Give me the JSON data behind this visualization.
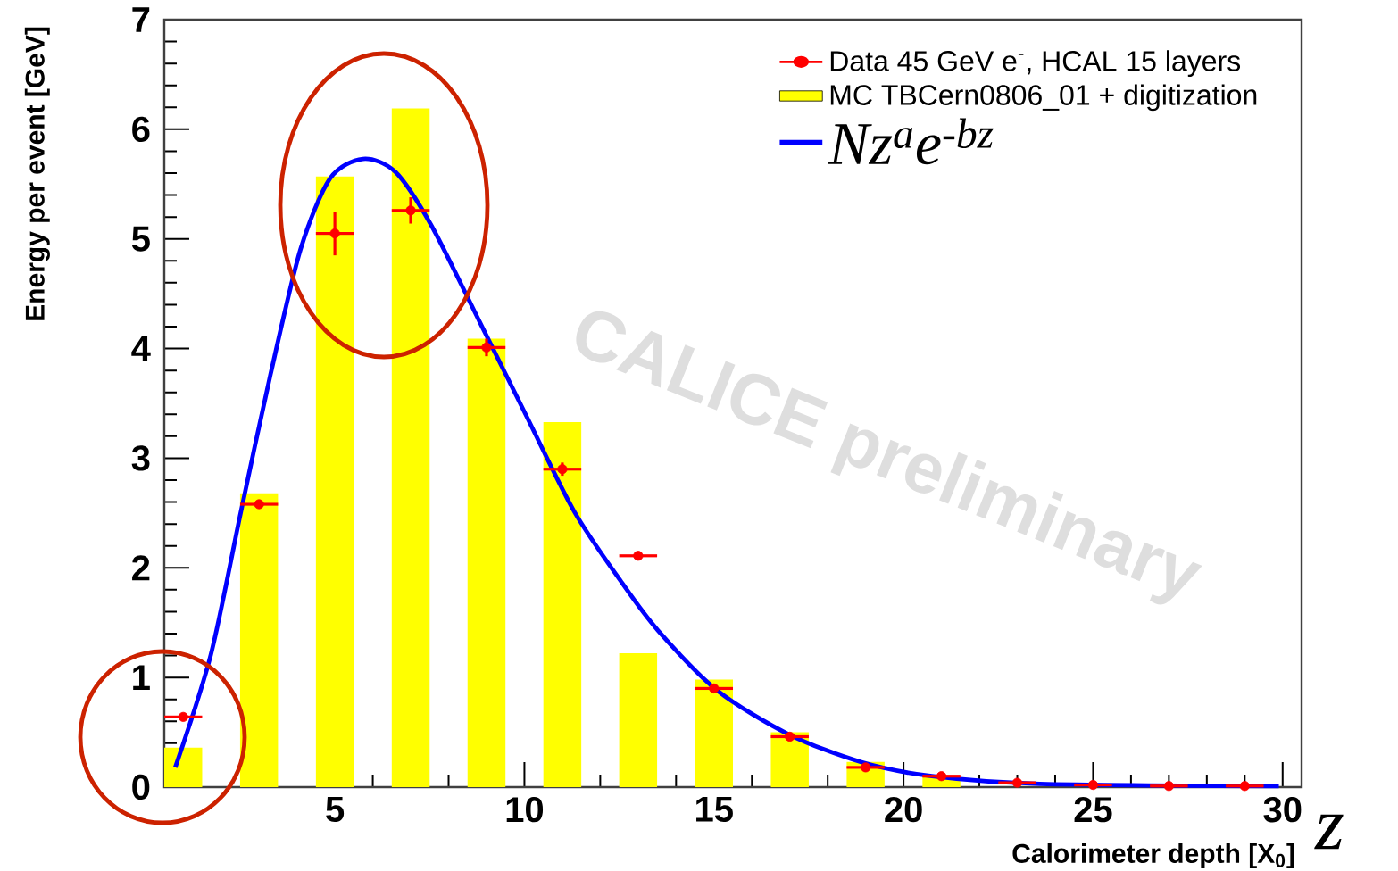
{
  "chart_data": {
    "type": "bar",
    "xlabel": "Calorimeter depth [X$_{0}$]",
    "ylabel": "Energy per event [GeV]",
    "xlim": [
      0.5,
      30.5
    ],
    "ylim": [
      0,
      7
    ],
    "xticks": [
      5,
      10,
      15,
      20,
      25,
      30
    ],
    "yticks": [
      0,
      1,
      2,
      3,
      4,
      5,
      6,
      7
    ],
    "grid": false,
    "legend": "top right",
    "annotations": [
      "CALICE preliminary",
      "z"
    ],
    "series": [
      {
        "name": "Data 45 GeV e$^{-}$, HCAL 15 layers",
        "type": "scatter",
        "marker": "circle",
        "color": "#ff0000",
        "x": [
          1,
          3,
          5,
          7,
          9,
          11,
          13,
          15,
          17,
          19,
          21,
          23,
          25,
          27,
          29
        ],
        "values": [
          0.64,
          2.58,
          5.05,
          5.26,
          4.01,
          2.9,
          2.11,
          0.9,
          0.46,
          0.18,
          0.1,
          0.04,
          0.02,
          0.01,
          0.01
        ],
        "errors": [
          null,
          null,
          0.2,
          0.12,
          0.08,
          0.06,
          null,
          null,
          null,
          null,
          null,
          null,
          null,
          null,
          null
        ],
        "xerrors": [
          0.5,
          0.5,
          0.5,
          0.5,
          0.5,
          0.5,
          0.5,
          0.5,
          0.5,
          0.5,
          0.5,
          0.5,
          0.5,
          0.5,
          0.5
        ]
      },
      {
        "name": "MC TBCern0806_01 + digitization",
        "color": "#ffff00",
        "x": [
          1,
          3,
          5,
          7,
          9,
          11,
          13,
          15,
          17,
          19,
          21
        ],
        "values": [
          0.36,
          2.68,
          5.57,
          6.19,
          4.09,
          3.33,
          1.22,
          0.98,
          0.5,
          0.23,
          0.1
        ]
      },
      {
        "name": "Nz$^{a}$e$^{-bz}$",
        "type": "line",
        "color": "#0000ff",
        "line_style": "solid",
        "x": [
          0.79,
          1.73,
          2.52,
          3.3,
          4.09,
          4.87,
          5.74,
          6.6,
          7.55,
          8.81,
          10.06,
          11.32,
          12.58,
          13.52,
          15.09,
          16.98,
          18.87,
          20.75,
          23.6,
          29.9
        ],
        "values": [
          0.18,
          1.21,
          2.51,
          3.76,
          4.9,
          5.55,
          5.73,
          5.61,
          5.12,
          4.25,
          3.38,
          2.51,
          1.86,
          1.43,
          0.88,
          0.48,
          0.23,
          0.1,
          0.03,
          0.01
        ]
      }
    ]
  }
}
